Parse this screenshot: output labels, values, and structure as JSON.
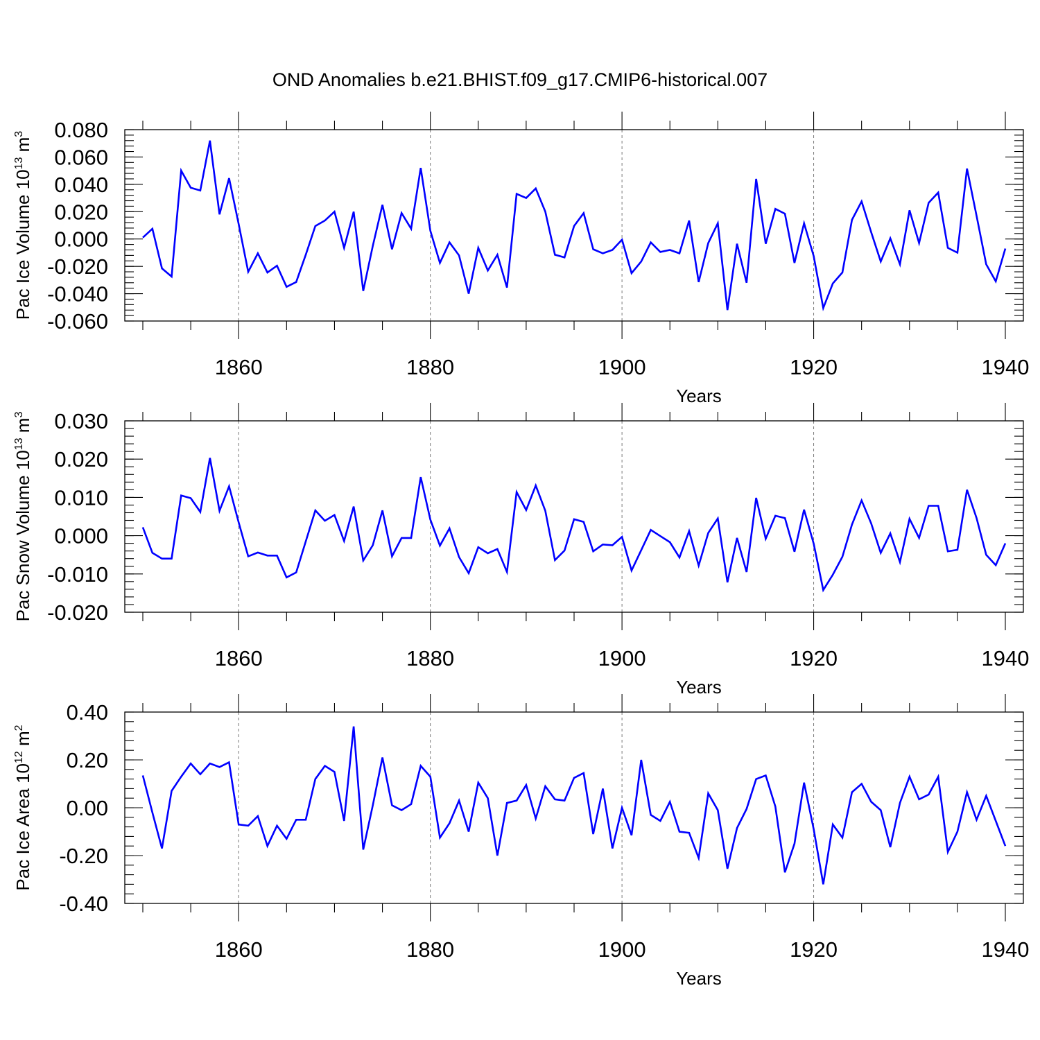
{
  "figure_title": "OND Anomalies b.e21.BHIST.f09_g17.CMIP6-historical.007",
  "colors": {
    "series": "#0000ff",
    "axes": "#000000",
    "grid": "#777777"
  },
  "chart_data": [
    {
      "type": "line",
      "title": "OND Anomalies b.e21.BHIST.f09_g17.CMIP6-historical.007",
      "xlabel": "Years",
      "ylabel": "Pac Ice Volume 10",
      "ylabel_sup": "13",
      "ylabel_unit": " m",
      "ylabel_unit_sup": "3",
      "xlim": [
        1850,
        1940
      ],
      "ylim": [
        -0.06,
        0.08
      ],
      "xticks": [
        1860,
        1880,
        1900,
        1920,
        1940
      ],
      "xtick_labels": [
        "1860",
        "1880",
        "1900",
        "1920",
        "1940"
      ],
      "yticks": [
        -0.06,
        -0.04,
        -0.02,
        0.0,
        0.02,
        0.04,
        0.06,
        0.08
      ],
      "ytick_labels": [
        "-0.060",
        "-0.040",
        "-0.020",
        "0.000",
        "0.020",
        "0.040",
        "0.060",
        "0.080"
      ],
      "x_start": 1850,
      "series": [
        {
          "name": "Pac Ice Volume",
          "values": [
            0.001,
            0.0075,
            -0.0215,
            -0.0275,
            0.05,
            0.0375,
            0.0355,
            0.072,
            0.018,
            0.0445,
            0.011,
            -0.024,
            -0.0105,
            -0.0245,
            -0.0195,
            -0.035,
            -0.0315,
            -0.0115,
            0.0095,
            0.0135,
            0.02,
            -0.0065,
            0.02,
            -0.038,
            -0.005,
            0.025,
            -0.0075,
            0.019,
            0.0075,
            0.052,
            0.006,
            -0.0175,
            -0.0025,
            -0.012,
            -0.04,
            -0.0065,
            -0.023,
            -0.0115,
            -0.0355,
            0.033,
            0.03,
            0.037,
            0.02,
            -0.0115,
            -0.0135,
            0.0095,
            0.019,
            -0.0075,
            -0.0105,
            -0.008,
            -0.0005,
            -0.025,
            -0.0165,
            -0.0025,
            -0.0095,
            -0.008,
            -0.0105,
            0.0135,
            -0.0315,
            -0.003,
            0.0115,
            -0.052,
            -0.0035,
            -0.032,
            0.044,
            -0.0035,
            0.022,
            0.0185,
            -0.0175,
            0.0115,
            -0.0125,
            -0.0505,
            -0.0325,
            -0.0245,
            0.014,
            0.0275,
            0.005,
            -0.0165,
            0.0005,
            -0.0185,
            0.021,
            -0.003,
            0.0265,
            0.034,
            -0.0065,
            -0.01,
            0.0515,
            0.017,
            -0.0185,
            -0.031,
            -0.007
          ]
        }
      ]
    },
    {
      "type": "line",
      "xlabel": "Years",
      "ylabel": "Pac Snow Volume 10",
      "ylabel_sup": "13",
      "ylabel_unit": " m",
      "ylabel_unit_sup": "3",
      "xlim": [
        1850,
        1940
      ],
      "ylim": [
        -0.02,
        0.03
      ],
      "xticks": [
        1860,
        1880,
        1900,
        1920,
        1940
      ],
      "xtick_labels": [
        "1860",
        "1880",
        "1900",
        "1920",
        "1940"
      ],
      "yticks": [
        -0.02,
        -0.01,
        0.0,
        0.01,
        0.02,
        0.03
      ],
      "ytick_labels": [
        "-0.020",
        "-0.010",
        "0.000",
        "0.010",
        "0.020",
        "0.030"
      ],
      "x_start": 1850,
      "series": [
        {
          "name": "Pac Snow Volume",
          "values": [
            0.0022,
            -0.0045,
            -0.006,
            -0.006,
            0.0105,
            0.0098,
            0.0062,
            0.0203,
            0.0065,
            0.0129,
            0.0035,
            -0.0054,
            -0.0044,
            -0.0052,
            -0.0052,
            -0.0109,
            -0.0096,
            -0.0015,
            0.0066,
            0.0039,
            0.0054,
            -0.0014,
            0.0076,
            -0.0065,
            -0.0025,
            0.0066,
            -0.0054,
            -0.0006,
            -0.0006,
            0.0153,
            0.0042,
            -0.0026,
            0.0019,
            -0.0056,
            -0.0098,
            -0.003,
            -0.0046,
            -0.0035,
            -0.0095,
            0.0114,
            0.0067,
            0.0131,
            0.0065,
            -0.0064,
            -0.0039,
            0.0043,
            0.0036,
            -0.0041,
            -0.0023,
            -0.0025,
            -0.0003,
            -0.0091,
            -0.0038,
            0.0015,
            -0.0001,
            -0.0017,
            -0.0057,
            0.0012,
            -0.0078,
            0.0007,
            0.0045,
            -0.0122,
            -0.0006,
            -0.0095,
            0.0099,
            -0.0008,
            0.0052,
            0.0046,
            -0.0042,
            0.0068,
            -0.0021,
            -0.0142,
            -0.0102,
            -0.0055,
            0.0029,
            0.0092,
            0.0032,
            -0.0045,
            0.0006,
            -0.0069,
            0.0044,
            -0.0006,
            0.0078,
            0.0078,
            -0.0041,
            -0.0037,
            0.012,
            0.0046,
            -0.005,
            -0.0077,
            -0.002
          ]
        }
      ]
    },
    {
      "type": "line",
      "xlabel": "Years",
      "ylabel": "Pac Ice Area 10",
      "ylabel_sup": "12",
      "ylabel_unit": " m",
      "ylabel_unit_sup": "2",
      "xlim": [
        1850,
        1940
      ],
      "ylim": [
        -0.4,
        0.4
      ],
      "xticks": [
        1860,
        1880,
        1900,
        1920,
        1940
      ],
      "xtick_labels": [
        "1860",
        "1880",
        "1900",
        "1920",
        "1940"
      ],
      "yticks": [
        -0.4,
        -0.2,
        0.0,
        0.2,
        0.4
      ],
      "ytick_labels": [
        "-0.40",
        "-0.20",
        "0.00",
        "0.20",
        "0.40"
      ],
      "x_start": 1850,
      "series": [
        {
          "name": "Pac Ice Area",
          "values": [
            0.135,
            -0.02,
            -0.17,
            0.07,
            0.13,
            0.185,
            0.14,
            0.185,
            0.17,
            0.19,
            -0.07,
            -0.075,
            -0.035,
            -0.16,
            -0.075,
            -0.13,
            -0.05,
            -0.05,
            0.12,
            0.175,
            0.15,
            -0.055,
            0.34,
            -0.175,
            0.01,
            0.21,
            0.01,
            -0.01,
            0.015,
            0.175,
            0.13,
            -0.125,
            -0.065,
            0.03,
            -0.1,
            0.105,
            0.04,
            -0.2,
            0.02,
            0.03,
            0.095,
            -0.045,
            0.09,
            0.035,
            0.03,
            0.125,
            0.145,
            -0.11,
            0.08,
            -0.17,
            0.0,
            -0.115,
            0.2,
            -0.03,
            -0.055,
            0.025,
            -0.1,
            -0.105,
            -0.21,
            0.06,
            -0.01,
            -0.255,
            -0.085,
            -0.005,
            0.12,
            0.135,
            0.005,
            -0.27,
            -0.15,
            0.105,
            -0.09,
            -0.32,
            -0.07,
            -0.125,
            0.065,
            0.1,
            0.025,
            -0.01,
            -0.165,
            0.02,
            0.13,
            0.035,
            0.055,
            0.13,
            -0.185,
            -0.1,
            0.065,
            -0.05,
            0.05,
            -0.055,
            -0.16
          ]
        }
      ]
    }
  ]
}
